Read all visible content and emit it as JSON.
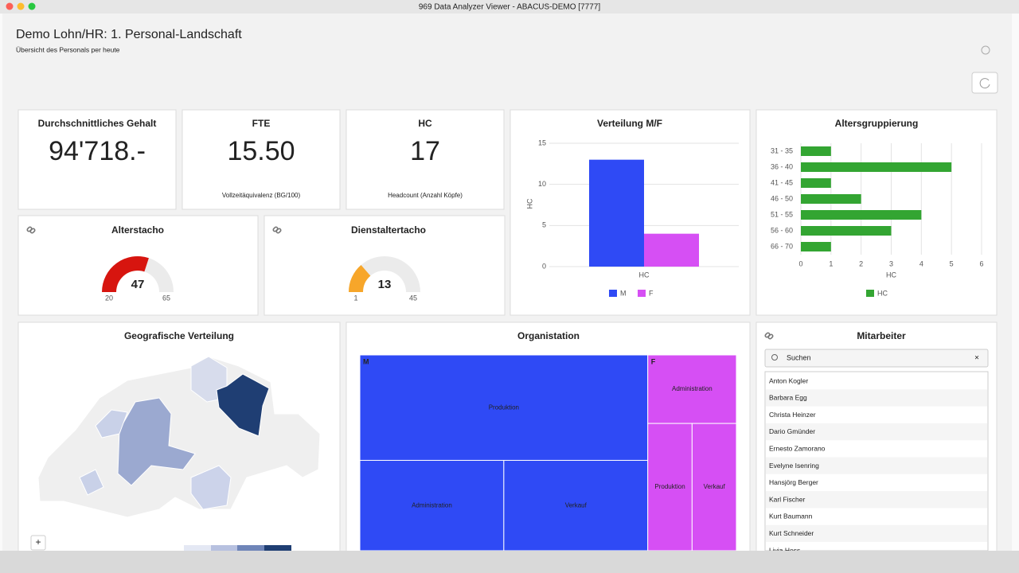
{
  "window": {
    "title": "969 Data Analyzer Viewer - ABACUS-DEMO [7777]"
  },
  "header": {
    "title": "Demo Lohn/HR: 1. Personal-Landschaft",
    "subtitle": "Übersicht des Personals per heute"
  },
  "kpis": [
    {
      "title": "Durchschnittliches Gehalt",
      "value": "94'718.-"
    },
    {
      "title": "FTE",
      "value": "15.50",
      "note": "Vollzeitäquivalenz (BG/100)"
    },
    {
      "title": "HC",
      "value": "17",
      "note": "Headcount (Anzahl Köpfe)"
    }
  ],
  "gauges": [
    {
      "title": "Alterstacho",
      "value": 47,
      "min": 20,
      "max": 65,
      "color": "#d7150f"
    },
    {
      "title": "Dienstaltertacho",
      "value": 13,
      "min": 1,
      "max": 45,
      "color": "#f7a62a"
    }
  ],
  "gender_chart": {
    "type": "bar",
    "title": "Verteilung M/F",
    "y_label": "HC",
    "categories": [
      "HC"
    ],
    "ylim": [
      0,
      15
    ],
    "yticks": [
      0,
      5,
      10,
      15
    ],
    "grid": true,
    "series": [
      {
        "name": "M",
        "color": "#2f4af5",
        "values": [
          13
        ]
      },
      {
        "name": "F",
        "color": "#d64ff4",
        "values": [
          4
        ]
      }
    ]
  },
  "age_chart": {
    "type": "bar",
    "orientation": "horizontal",
    "title": "Altersgruppierung",
    "x_label": "HC",
    "categories": [
      "31 - 35",
      "36 - 40",
      "41 - 45",
      "46 - 50",
      "51 - 55",
      "56 - 60",
      "66 - 70"
    ],
    "xlim": [
      0,
      6
    ],
    "xticks": [
      0,
      1,
      2,
      3,
      4,
      5,
      6
    ],
    "grid": true,
    "series": [
      {
        "name": "HC",
        "color": "#33a532",
        "values": [
          1,
          5,
          1,
          2,
          4,
          3,
          1
        ]
      }
    ]
  },
  "map": {
    "title": "Geografische Verteilung",
    "zoom_in": "+"
  },
  "treemap": {
    "type": "treemap",
    "title": "Organistation",
    "groups": [
      {
        "name": "M",
        "color": "#2f4af5",
        "children": [
          {
            "name": "Produktion",
            "value": 7
          },
          {
            "name": "Administration",
            "value": 3
          },
          {
            "name": "Verkauf",
            "value": 3
          }
        ]
      },
      {
        "name": "F",
        "color": "#d64ff4",
        "children": [
          {
            "name": "Administration",
            "value": 1.4
          },
          {
            "name": "Produktion",
            "value": 1.3
          },
          {
            "name": "Verkauf",
            "value": 1.3
          }
        ]
      }
    ]
  },
  "employees": {
    "title": "Mitarbeiter",
    "search_placeholder": "Suchen",
    "names": [
      "Anton Kogler",
      "Barbara Egg",
      "Christa Heinzer",
      "Dario Gmünder",
      "Ernesto Zamorano",
      "Evelyne Isenring",
      "Hansjörg Berger",
      "Karl Fischer",
      "Kurt Baumann",
      "Kurt Schneider",
      "Livia Hess"
    ]
  }
}
